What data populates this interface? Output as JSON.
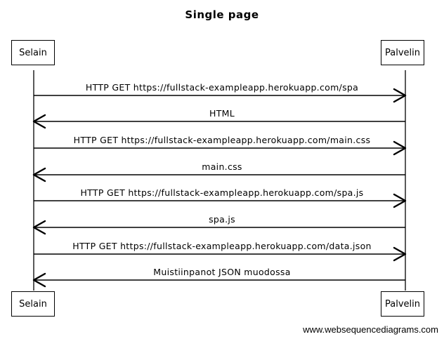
{
  "title": "Single page",
  "participants": {
    "left": "Selain",
    "right": "Palvelin"
  },
  "messages": [
    {
      "label": "HTTP GET https://fullstack-exampleapp.herokuapp.com/spa",
      "direction": "right"
    },
    {
      "label": "HTML",
      "direction": "left"
    },
    {
      "label": "HTTP GET https://fullstack-exampleapp.herokuapp.com/main.css",
      "direction": "right"
    },
    {
      "label": "main.css",
      "direction": "left"
    },
    {
      "label": "HTTP GET https://fullstack-exampleapp.herokuapp.com/spa.js",
      "direction": "right"
    },
    {
      "label": "spa.js",
      "direction": "left"
    },
    {
      "label": "HTTP GET https://fullstack-exampleapp.herokuapp.com/data.json",
      "direction": "right"
    },
    {
      "label": "Muistiinpanot JSON muodossa",
      "direction": "left"
    }
  ],
  "watermark": "www.websequencediagrams.com"
}
